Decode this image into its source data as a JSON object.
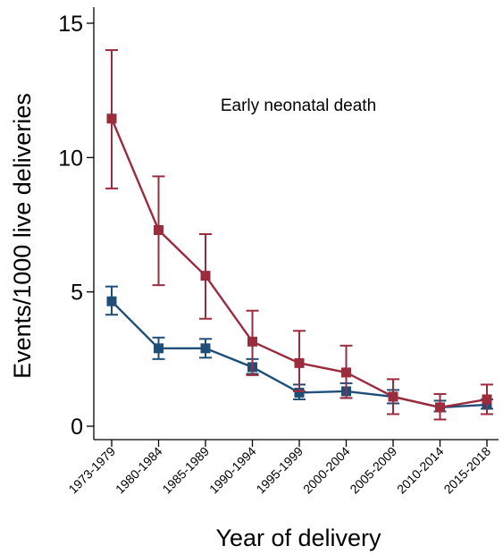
{
  "chart_data": {
    "type": "line",
    "annotation": "Early neonatal death",
    "xlabel": "Year of delivery",
    "ylabel": "Events/1000 live deliveries",
    "categories": [
      "1973-1979",
      "1980-1984",
      "1985-1989",
      "1990-1994",
      "1995-1999",
      "2000-2004",
      "2005-2009",
      "2010-2014",
      "2015-2018"
    ],
    "ylim": [
      0,
      15
    ],
    "yticks": [
      "0",
      "5",
      "10",
      "15"
    ],
    "grid": false,
    "legend": "none",
    "series": [
      {
        "color": "#1f4e79",
        "marker": "square",
        "values": [
          4.65,
          2.9,
          2.9,
          2.2,
          1.25,
          1.3,
          1.1,
          0.7,
          0.8
        ],
        "lower": [
          4.15,
          2.5,
          2.55,
          1.95,
          1.0,
          1.05,
          0.85,
          0.55,
          0.65
        ],
        "upper": [
          5.2,
          3.3,
          3.25,
          2.5,
          1.55,
          1.6,
          1.35,
          0.95,
          1.0
        ]
      },
      {
        "color": "#9b2c3e",
        "marker": "square",
        "values": [
          11.45,
          7.3,
          5.6,
          3.15,
          2.35,
          2.0,
          1.1,
          0.7,
          1.0
        ],
        "lower": [
          8.85,
          5.25,
          4.0,
          1.9,
          1.3,
          1.05,
          0.45,
          0.25,
          0.45
        ],
        "upper": [
          14.0,
          9.3,
          7.15,
          4.3,
          3.55,
          3.0,
          1.75,
          1.2,
          1.55
        ]
      }
    ]
  }
}
